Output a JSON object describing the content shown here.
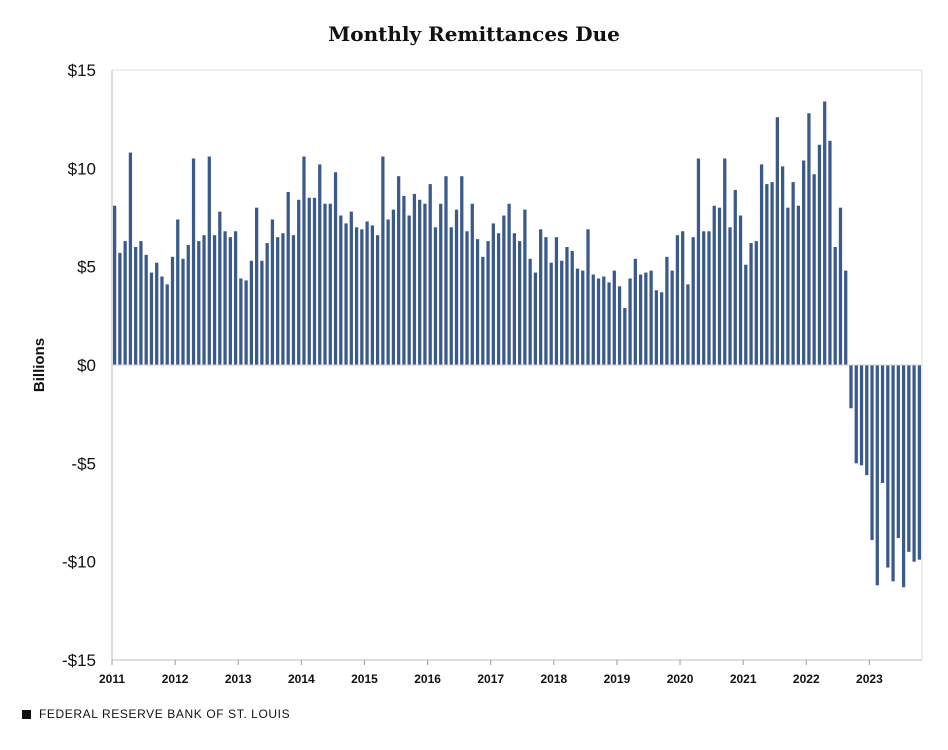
{
  "chart_data": {
    "type": "bar",
    "title": "Monthly Remittances Due",
    "ylabel": "Billions",
    "xlabel": "",
    "ylim": [
      -15,
      15
    ],
    "yticks": [
      15,
      10,
      5,
      0,
      -5,
      -10,
      -15
    ],
    "ytick_labels": [
      "$15",
      "$10",
      "$5",
      "$0",
      "-$5",
      "-$10",
      "-$15"
    ],
    "x_start": "2011-01",
    "xtick_labels": [
      "2011",
      "2012",
      "2013",
      "2014",
      "2015",
      "2016",
      "2017",
      "2018",
      "2019",
      "2020",
      "2021",
      "2022",
      "2023"
    ],
    "bar_color": "#3a5a8c",
    "grid": false,
    "values": [
      8.1,
      5.7,
      6.3,
      10.8,
      6.0,
      6.3,
      5.6,
      4.7,
      5.2,
      4.5,
      4.1,
      5.5,
      7.4,
      5.4,
      6.1,
      10.5,
      6.3,
      6.6,
      10.6,
      6.6,
      7.8,
      6.8,
      6.5,
      6.8,
      4.4,
      4.3,
      5.3,
      8.0,
      5.3,
      6.2,
      7.4,
      6.5,
      6.7,
      8.8,
      6.6,
      8.4,
      10.6,
      8.5,
      8.5,
      10.2,
      8.2,
      8.2,
      9.8,
      7.6,
      7.2,
      7.8,
      7.0,
      6.9,
      7.3,
      7.1,
      6.6,
      10.6,
      7.4,
      7.9,
      9.6,
      8.6,
      7.6,
      8.7,
      8.4,
      8.2,
      9.2,
      7.0,
      8.2,
      9.6,
      7.0,
      7.9,
      9.6,
      6.8,
      8.2,
      6.4,
      5.5,
      6.3,
      7.2,
      6.7,
      7.6,
      8.2,
      6.7,
      6.3,
      7.9,
      5.4,
      4.7,
      6.9,
      6.5,
      5.2,
      6.5,
      5.3,
      6.0,
      5.8,
      4.9,
      4.8,
      6.9,
      4.6,
      4.4,
      4.5,
      4.2,
      4.8,
      4.0,
      2.9,
      4.4,
      5.4,
      4.6,
      4.7,
      4.8,
      3.8,
      3.7,
      5.5,
      4.8,
      6.6,
      6.8,
      4.1,
      6.5,
      10.5,
      6.8,
      6.8,
      8.1,
      8.0,
      10.5,
      7.0,
      8.9,
      7.6,
      5.1,
      6.2,
      6.3,
      10.2,
      9.2,
      9.3,
      12.6,
      10.1,
      8.0,
      9.3,
      8.1,
      10.4,
      12.8,
      9.7,
      11.2,
      13.4,
      11.4,
      6.0,
      8.0,
      4.8,
      -2.2,
      -5.0,
      -5.1,
      -5.6,
      -8.9,
      -11.2,
      -6.0,
      -10.3,
      -11.0,
      -8.8,
      -11.3,
      -9.5,
      -10.0,
      -9.9
    ]
  },
  "footer": {
    "text": "FEDERAL RESERVE BANK OF ST. LOUIS"
  }
}
